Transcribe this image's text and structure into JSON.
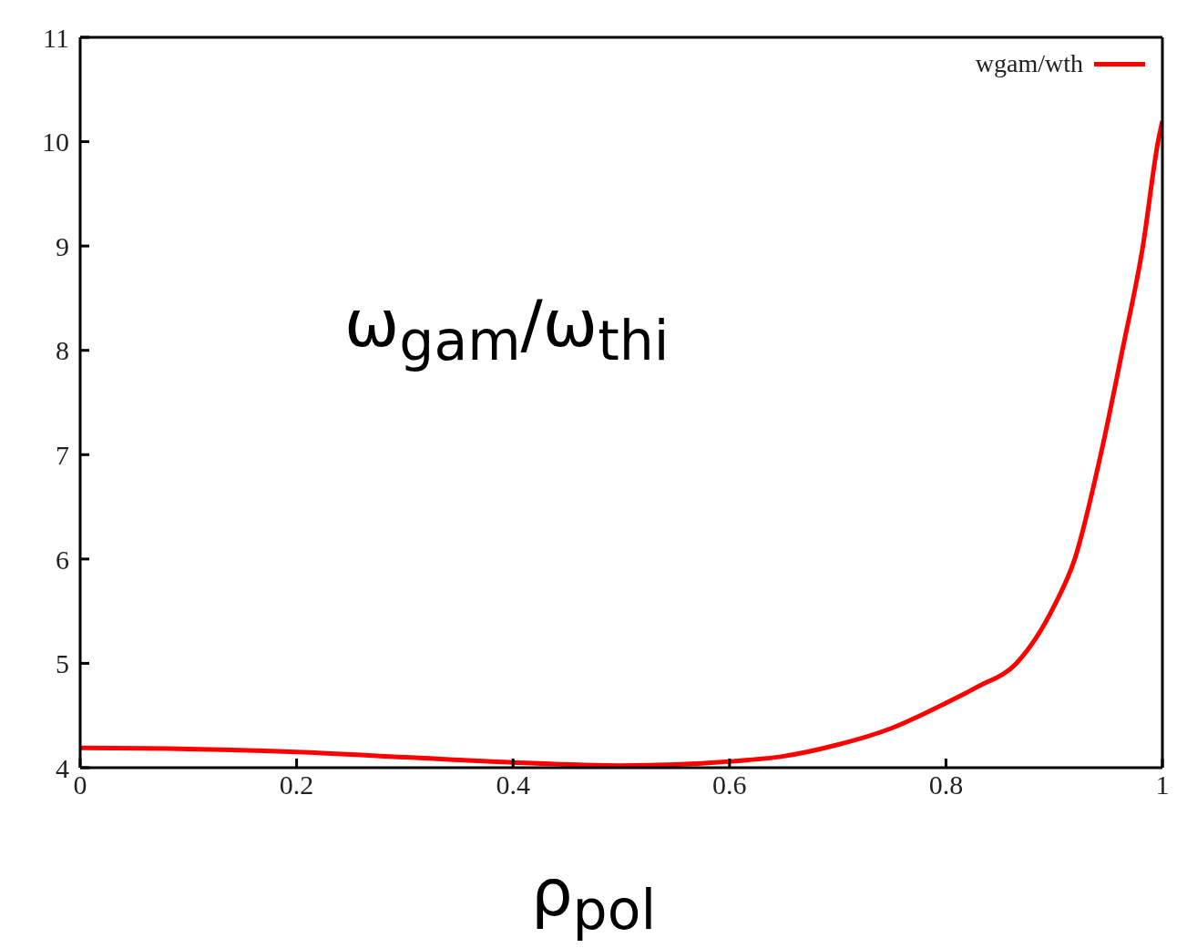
{
  "chart_data": {
    "type": "line",
    "xlabel": "ρ$_{pol}$",
    "annotations": [
      "ω$_{gam}$/ω$_{thi}$"
    ],
    "series": [
      {
        "name": "wgam/wth",
        "color": "#ff0000",
        "x": [
          0,
          0.1,
          0.2,
          0.3,
          0.4,
          0.5,
          0.55,
          0.6,
          0.65,
          0.7,
          0.75,
          0.8,
          0.83,
          0.865,
          0.9,
          0.919,
          0.943,
          0.963,
          0.982,
          0.996,
          1
        ],
        "values": [
          4.19,
          4.18,
          4.15,
          4.1,
          4.05,
          4.02,
          4.03,
          4.06,
          4.11,
          4.22,
          4.38,
          4.62,
          4.78,
          5,
          5.55,
          6,
          7,
          8,
          9,
          10,
          10.2
        ]
      }
    ],
    "xlim": [
      0,
      1
    ],
    "xticks": [
      0,
      0.2,
      0.4,
      0.6,
      0.8,
      1
    ],
    "ylim": [
      4,
      11
    ],
    "yticks": [
      4,
      5,
      6,
      7,
      8,
      9,
      10,
      11
    ],
    "legend": "top right",
    "marker": "none",
    "line_style": "solid"
  }
}
